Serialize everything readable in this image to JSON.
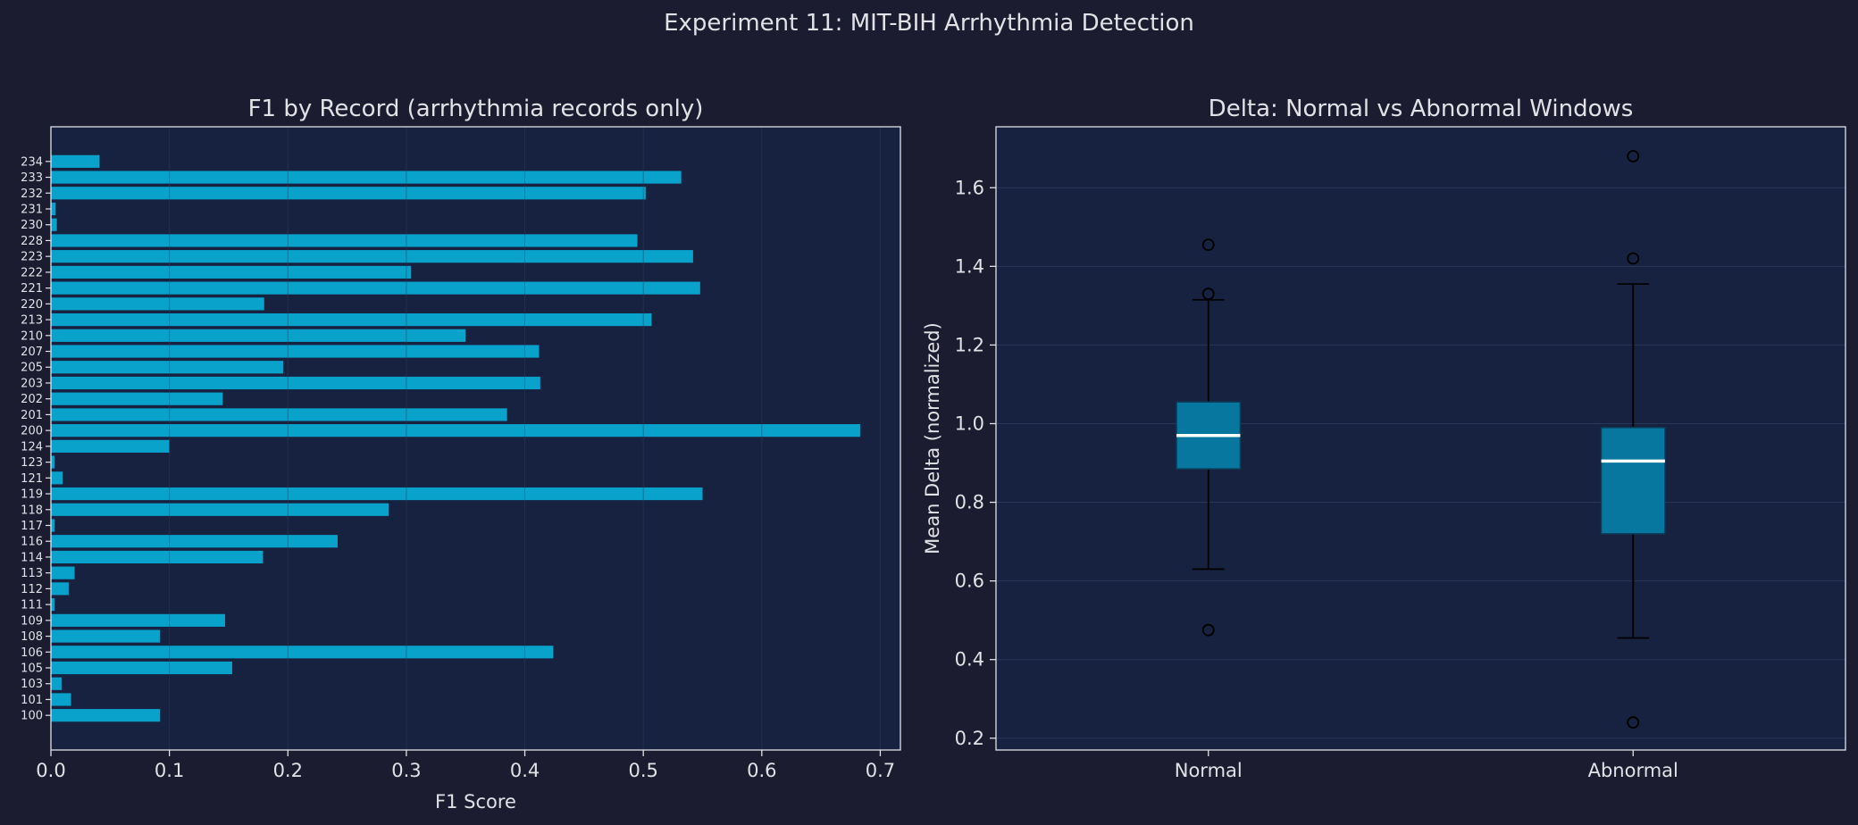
{
  "suptitle": "Experiment 11: MIT-BIH Arrhythmia Detection",
  "colors": {
    "background": "#1b1c2f",
    "axes_face": "#172240",
    "bar": "#09a2cb",
    "box_fill": "#08779f",
    "median": "#ffffff",
    "text": "#e1e1e6",
    "grid": "#2a3656",
    "whisker": "#000000"
  },
  "chart_data": [
    {
      "type": "bar",
      "orientation": "horizontal",
      "title": "F1 by Record (arrhythmia records only)",
      "xlabel": "F1 Score",
      "ylabel": "",
      "xlim": [
        0,
        0.717
      ],
      "xticks": [
        "0.0",
        "0.1",
        "0.2",
        "0.3",
        "0.4",
        "0.5",
        "0.6",
        "0.7"
      ],
      "grid": true,
      "categories": [
        "100",
        "101",
        "103",
        "105",
        "106",
        "108",
        "109",
        "111",
        "112",
        "113",
        "114",
        "116",
        "117",
        "118",
        "119",
        "121",
        "123",
        "124",
        "200",
        "201",
        "202",
        "203",
        "205",
        "207",
        "210",
        "213",
        "220",
        "221",
        "222",
        "223",
        "228",
        "230",
        "231",
        "232",
        "233",
        "234"
      ],
      "values": [
        0.092,
        0.017,
        0.009,
        0.153,
        0.424,
        0.092,
        0.147,
        0.003,
        0.015,
        0.02,
        0.179,
        0.242,
        0.003,
        0.285,
        0.55,
        0.01,
        0.003,
        0.1,
        0.683,
        0.385,
        0.145,
        0.413,
        0.196,
        0.412,
        0.35,
        0.507,
        0.18,
        0.548,
        0.304,
        0.542,
        0.495,
        0.005,
        0.004,
        0.502,
        0.532,
        0.041
      ]
    },
    {
      "type": "box",
      "title": "Delta: Normal vs Abnormal Windows",
      "xlabel": "",
      "ylabel": "Mean Delta (normalized)",
      "ylim": [
        0.17,
        1.755
      ],
      "yticks": [
        "0.2",
        "0.4",
        "0.6",
        "0.8",
        "1.0",
        "1.2",
        "1.4",
        "1.6"
      ],
      "grid": true,
      "categories": [
        "Normal",
        "Abnormal"
      ],
      "boxes": [
        {
          "name": "Normal",
          "whislo": 0.63,
          "q1": 0.885,
          "med": 0.97,
          "q3": 1.055,
          "whishi": 1.315,
          "fliers": [
            0.475,
            1.33,
            1.455
          ]
        },
        {
          "name": "Abnormal",
          "whislo": 0.455,
          "q1": 0.72,
          "med": 0.905,
          "q3": 0.99,
          "whishi": 1.355,
          "fliers": [
            0.24,
            1.42,
            1.68
          ]
        }
      ]
    }
  ]
}
